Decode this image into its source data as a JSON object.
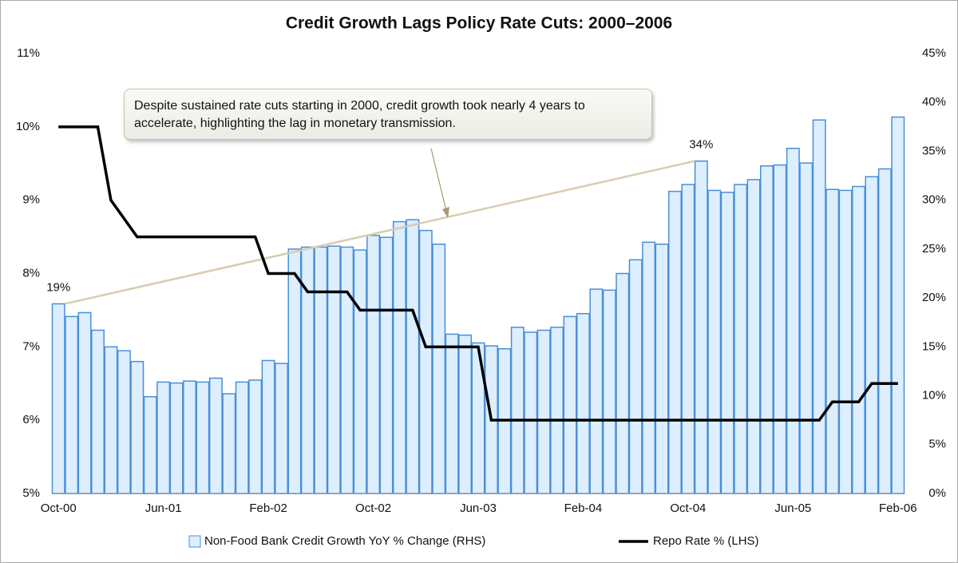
{
  "chart_data": {
    "type": "bar_line",
    "title": "Credit Growth Lags Policy Rate Cuts: 2000–2006",
    "annotation": "Despite sustained rate cuts starting in 2000, credit growth took nearly 4 years to accelerate, highlighting  the lag in monetary transmission.",
    "categories": [
      "Oct-00",
      null,
      null,
      null,
      null,
      null,
      null,
      null,
      "Jun-01",
      null,
      null,
      null,
      null,
      null,
      null,
      null,
      "Feb-02",
      null,
      null,
      null,
      null,
      null,
      null,
      null,
      "Oct-02",
      null,
      null,
      null,
      null,
      null,
      null,
      null,
      "Jun-03",
      null,
      null,
      null,
      null,
      null,
      null,
      null,
      "Feb-04",
      null,
      null,
      null,
      null,
      null,
      null,
      null,
      "Oct-04",
      null,
      null,
      null,
      null,
      null,
      null,
      null,
      "Jun-05",
      null,
      null,
      null,
      null,
      null,
      null,
      null,
      "Feb-06"
    ],
    "series": [
      {
        "name": "Non-Food Bank Credit Growth YoY % Change (RHS)",
        "kind": "bar",
        "axis": "y2",
        "color": "#ddeeff",
        "edge": "#4a8fd6",
        "values": [
          19.4,
          18.1,
          18.5,
          16.7,
          15.0,
          14.6,
          13.5,
          9.9,
          11.4,
          11.3,
          11.5,
          11.4,
          11.8,
          10.2,
          11.4,
          11.6,
          13.6,
          13.3,
          25.0,
          25.2,
          25.2,
          25.3,
          25.2,
          24.9,
          26.4,
          26.2,
          27.8,
          28.0,
          26.9,
          25.5,
          16.3,
          16.2,
          15.4,
          15.1,
          14.8,
          17.0,
          16.5,
          16.7,
          17.0,
          18.1,
          18.4,
          20.9,
          20.8,
          22.5,
          23.9,
          25.7,
          25.5,
          30.9,
          31.6,
          34.0,
          31.0,
          30.8,
          31.6,
          32.1,
          33.5,
          33.6,
          35.3,
          33.8,
          38.2,
          31.1,
          31.0,
          31.4,
          32.4,
          33.2,
          38.5
        ],
        "value_labels": [
          "19%",
          null,
          null,
          null,
          null,
          null,
          null,
          null,
          null,
          null,
          null,
          null,
          null,
          null,
          null,
          null,
          null,
          null,
          null,
          null,
          null,
          null,
          null,
          null,
          null,
          null,
          null,
          null,
          null,
          null,
          null,
          null,
          null,
          null,
          null,
          null,
          null,
          null,
          null,
          null,
          null,
          null,
          null,
          null,
          null,
          null,
          null,
          null,
          null,
          "34%",
          null,
          null,
          null,
          null,
          null,
          null,
          null,
          null,
          null,
          null,
          null,
          null,
          null,
          null,
          null
        ]
      },
      {
        "name": "Repo Rate % (LHS)",
        "kind": "line",
        "axis": "y",
        "color": "#000000",
        "values": [
          10,
          10,
          10,
          10,
          9,
          8.75,
          8.5,
          8.5,
          8.5,
          8.5,
          8.5,
          8.5,
          8.5,
          8.5,
          8.5,
          8.5,
          8,
          8,
          8,
          7.75,
          7.75,
          7.75,
          7.75,
          7.5,
          7.5,
          7.5,
          7.5,
          7.5,
          7,
          7,
          7,
          7,
          7,
          6,
          6,
          6,
          6,
          6,
          6,
          6,
          6,
          6,
          6,
          6,
          6,
          6,
          6,
          6,
          6,
          6,
          6,
          6,
          6,
          6,
          6,
          6,
          6,
          6,
          6,
          6.25,
          6.25,
          6.25,
          6.5,
          6.5,
          6.5
        ]
      }
    ],
    "ylim": [
      5,
      11
    ],
    "yticks": [
      {
        "value": 5,
        "label": "5%"
      },
      {
        "value": 6,
        "label": "6%"
      },
      {
        "value": 7,
        "label": "7%"
      },
      {
        "value": 8,
        "label": "8%"
      },
      {
        "value": 9,
        "label": "9%"
      },
      {
        "value": 10,
        "label": "10%"
      },
      {
        "value": 11,
        "label": "11%"
      }
    ],
    "y2lim": [
      0,
      45
    ],
    "y2ticks": [
      {
        "value": 0,
        "label": "0%"
      },
      {
        "value": 5,
        "label": "5%"
      },
      {
        "value": 10,
        "label": "10%"
      },
      {
        "value": 15,
        "label": "15%"
      },
      {
        "value": 20,
        "label": "20%"
      },
      {
        "value": 25,
        "label": "25%"
      },
      {
        "value": 30,
        "label": "30%"
      },
      {
        "value": 35,
        "label": "35%"
      },
      {
        "value": 40,
        "label": "40%"
      },
      {
        "value": 45,
        "label": "45%"
      }
    ],
    "legend": "bottom"
  }
}
